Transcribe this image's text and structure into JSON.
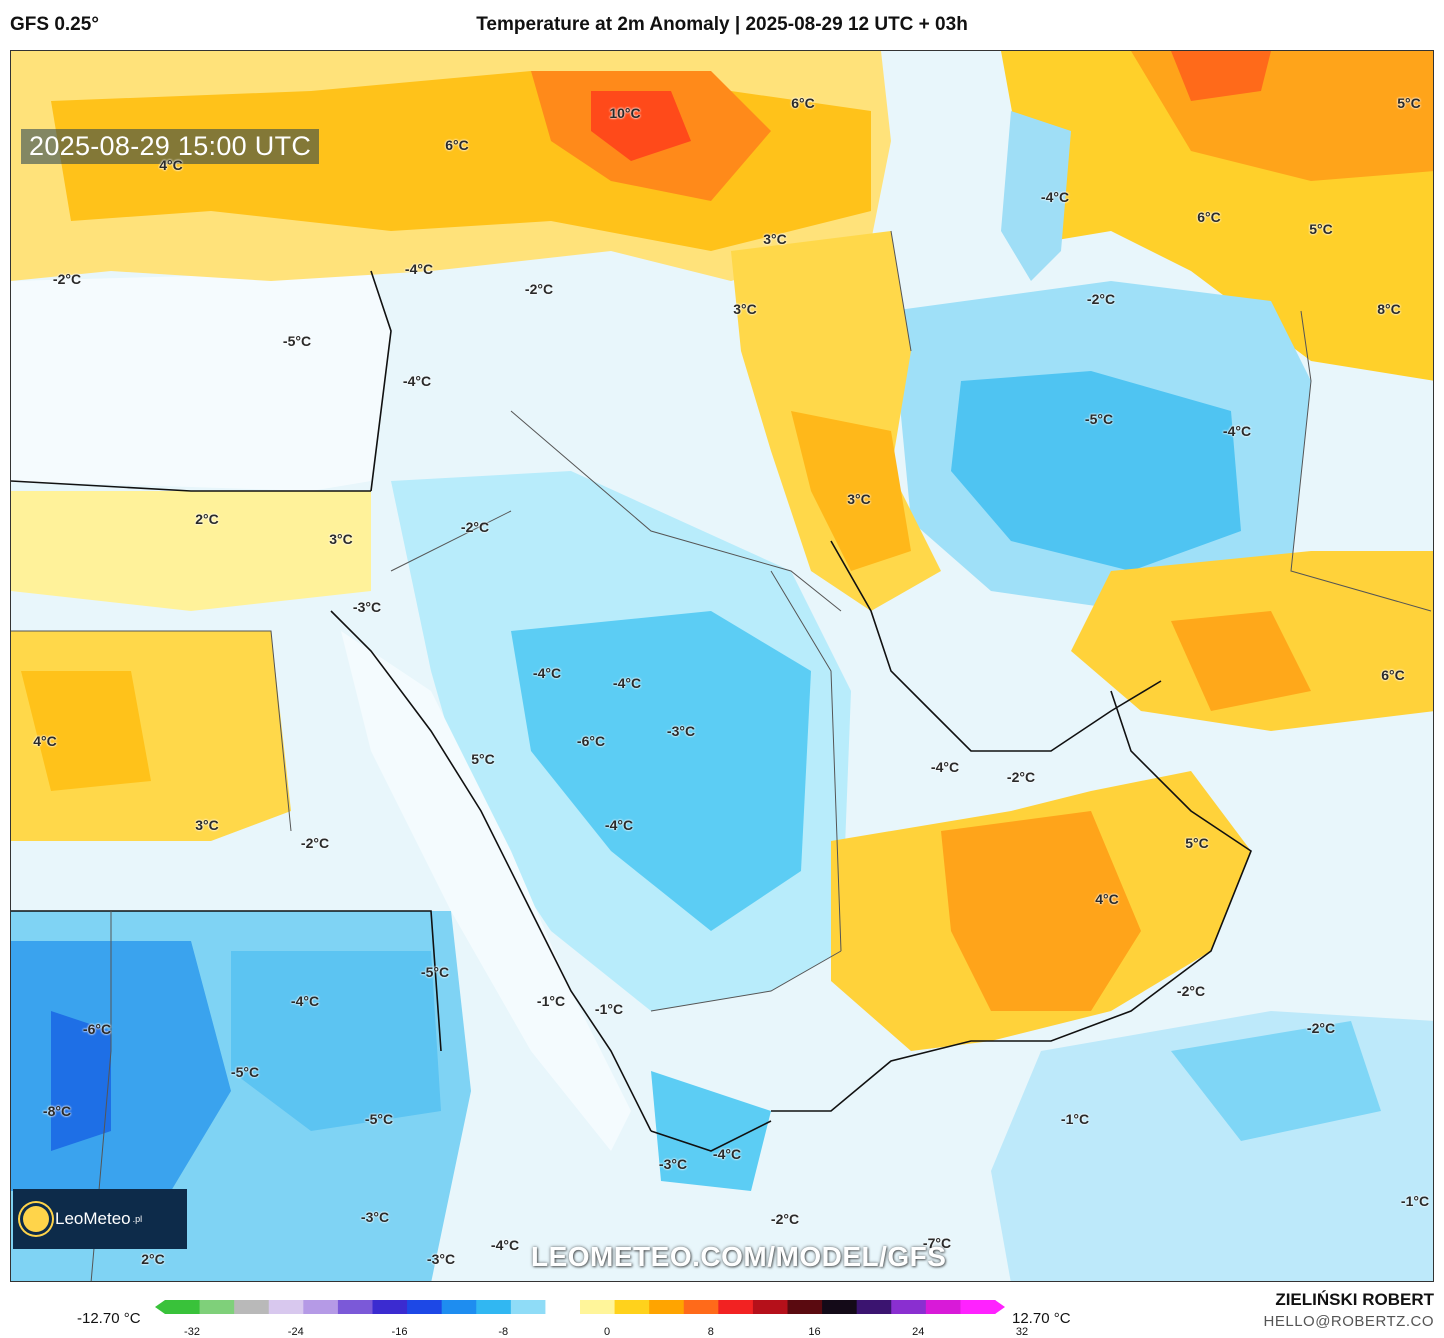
{
  "header": {
    "model": "GFS 0.25°",
    "title": "Temperature at 2m Anomaly | 2025-08-29 12 UTC + 03h"
  },
  "valid_time": "2025-08-29 15:00 UTC",
  "watermark_url": "LEOMETEO.COM/MODEL/GFS",
  "logo": {
    "brand": "LeoMeteo",
    "suffix": ".pl"
  },
  "author": {
    "name": "ZIELIŃSKI ROBERT",
    "email": "HELLO@ROBERTZ.CO"
  },
  "scale": {
    "min_label": "-12.70 °C",
    "max_label": "12.70 °C",
    "ticks": [
      "-32",
      "-24",
      "-16",
      "-8",
      "0",
      "8",
      "16",
      "24",
      "32"
    ],
    "colors": [
      "#39c23a",
      "#7fd07a",
      "#b9b9b9",
      "#d8c8ee",
      "#b59ae6",
      "#7b59d8",
      "#3b2bd0",
      "#1d48e6",
      "#1e8df0",
      "#31b7f2",
      "#8fdcf7",
      "#ffffff",
      "#fff59a",
      "#ffd21c",
      "#ffa400",
      "#ff6a1a",
      "#f22222",
      "#b5101a",
      "#5a0a10",
      "#140a18",
      "#3b1470",
      "#8a2fd0",
      "#d81ad8",
      "#ff22ff"
    ]
  },
  "map_labels": [
    {
      "text": "10°C"
    },
    {
      "text": "6°C"
    },
    {
      "text": "4°C"
    },
    {
      "text": "6°C"
    },
    {
      "text": "5°C"
    },
    {
      "text": "-4°C"
    },
    {
      "text": "6°C"
    },
    {
      "text": "5°C"
    },
    {
      "text": "3°C"
    },
    {
      "text": "-2°C"
    },
    {
      "text": "-4°C"
    },
    {
      "text": "-2°C"
    },
    {
      "text": "-2°C"
    },
    {
      "text": "8°C"
    },
    {
      "text": "-5°C"
    },
    {
      "text": "3°C"
    },
    {
      "text": "-4°C"
    },
    {
      "text": "-5°C"
    },
    {
      "text": "-4°C"
    },
    {
      "text": "2°C"
    },
    {
      "text": "3°C"
    },
    {
      "text": "-2°C"
    },
    {
      "text": "-3°C"
    },
    {
      "text": "4°C"
    },
    {
      "text": "-4°C"
    },
    {
      "text": "-4°C"
    },
    {
      "text": "-3°C"
    },
    {
      "text": "-6°C"
    },
    {
      "text": "5°C"
    },
    {
      "text": "3°C"
    },
    {
      "text": "6°C"
    },
    {
      "text": "-4°C"
    },
    {
      "text": "-2°C"
    },
    {
      "text": "-4°C"
    },
    {
      "text": "3°C"
    },
    {
      "text": "-2°C"
    },
    {
      "text": "5°C"
    },
    {
      "text": "4°C"
    },
    {
      "text": "-5°C"
    },
    {
      "text": "-4°C"
    },
    {
      "text": "-6°C"
    },
    {
      "text": "-1°C"
    },
    {
      "text": "-1°C"
    },
    {
      "text": "-2°C"
    },
    {
      "text": "-2°C"
    },
    {
      "text": "-5°C"
    },
    {
      "text": "-8°C"
    },
    {
      "text": "-5°C"
    },
    {
      "text": "-1°C"
    },
    {
      "text": "-3°C"
    },
    {
      "text": "-4°C"
    },
    {
      "text": "-3°C"
    },
    {
      "text": "-2°C"
    },
    {
      "text": "-3°C"
    },
    {
      "text": "-4°C"
    },
    {
      "text": "2°C"
    },
    {
      "text": "-7°C"
    },
    {
      "text": "-1°C"
    }
  ]
}
